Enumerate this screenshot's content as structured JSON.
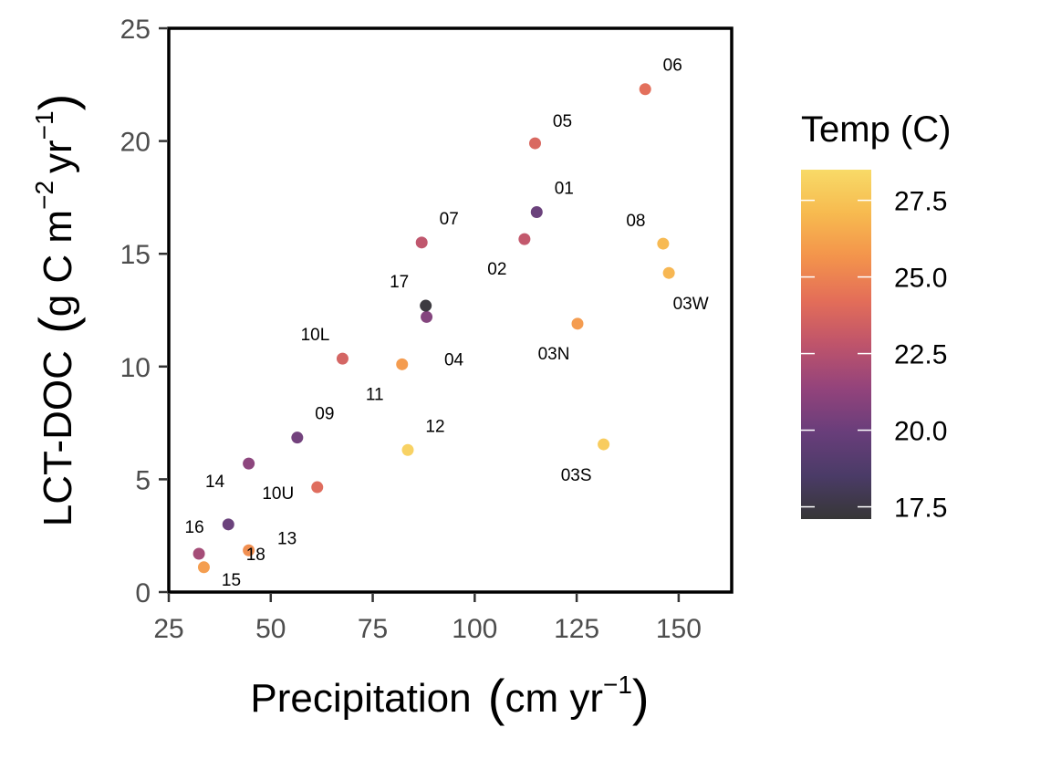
{
  "chart_data": {
    "type": "scatter",
    "xlabel": "Precipitation",
    "xlabel_unit": "cm yr",
    "xlabel_sup": "−1",
    "ylabel": "LCT-DOC",
    "ylabel_unit_a": "g C m",
    "ylabel_sup_a": "−2",
    "ylabel_unit_b": "yr",
    "ylabel_sup_b": "−1",
    "xlim": [
      25,
      163
    ],
    "ylim": [
      0,
      25
    ],
    "x_ticks": [
      25,
      50,
      75,
      100,
      125,
      150
    ],
    "y_ticks": [
      0,
      5,
      10,
      15,
      20,
      25
    ],
    "grid": false,
    "legend": {
      "title": "Temp (C)",
      "placement": "right",
      "type": "colorbar",
      "range": [
        17.1,
        28.5
      ],
      "ticks": [
        17.5,
        20.0,
        22.5,
        25.0,
        27.5
      ],
      "tick_labels": [
        "17.5",
        "20.0",
        "22.5",
        "25.0",
        "27.5"
      ],
      "colors": [
        "#252525",
        "#3b2a5a",
        "#5c2d6f",
        "#8a3370",
        "#b9455e",
        "#e1614a",
        "#f28a3c",
        "#f6b440",
        "#f7d75a"
      ]
    },
    "points": [
      {
        "label": "01",
        "x": 115.2,
        "y": 16.85,
        "temp": 19.9
      },
      {
        "label": "02",
        "x": 112.2,
        "y": 15.65,
        "temp": 22.9
      },
      {
        "label": "03N",
        "x": 125.2,
        "y": 11.9,
        "temp": 25.9
      },
      {
        "label": "03S",
        "x": 131.6,
        "y": 6.55,
        "temp": 27.8
      },
      {
        "label": "03W",
        "x": 147.6,
        "y": 14.15,
        "temp": 26.9
      },
      {
        "label": "04",
        "x": 88.2,
        "y": 12.2,
        "temp": 20.8
      },
      {
        "label": "05",
        "x": 114.8,
        "y": 19.9,
        "temp": 23.8
      },
      {
        "label": "06",
        "x": 141.8,
        "y": 22.3,
        "temp": 24.2
      },
      {
        "label": "07",
        "x": 87.0,
        "y": 15.5,
        "temp": 22.8
      },
      {
        "label": "08",
        "x": 146.2,
        "y": 15.45,
        "temp": 27.0
      },
      {
        "label": "09",
        "x": 56.5,
        "y": 6.85,
        "temp": 20.2
      },
      {
        "label": "10L",
        "x": 67.6,
        "y": 10.35,
        "temp": 23.6
      },
      {
        "label": "10U",
        "x": 61.4,
        "y": 4.65,
        "temp": 24.0
      },
      {
        "label": "11",
        "x": 82.2,
        "y": 10.1,
        "temp": 25.9
      },
      {
        "label": "12",
        "x": 83.6,
        "y": 6.3,
        "temp": 28.1
      },
      {
        "label": "13",
        "x": 44.6,
        "y": 1.85,
        "temp": 25.4
      },
      {
        "label": "14",
        "x": 44.6,
        "y": 5.7,
        "temp": 21.1
      },
      {
        "label": "15",
        "x": 33.6,
        "y": 1.1,
        "temp": 26.0
      },
      {
        "label": "16",
        "x": 32.4,
        "y": 1.7,
        "temp": 21.9
      },
      {
        "label": "17",
        "x": 88.0,
        "y": 12.7,
        "temp": 17.3
      },
      {
        "label": "18",
        "x": 39.6,
        "y": 3.0,
        "temp": 19.9
      }
    ]
  }
}
